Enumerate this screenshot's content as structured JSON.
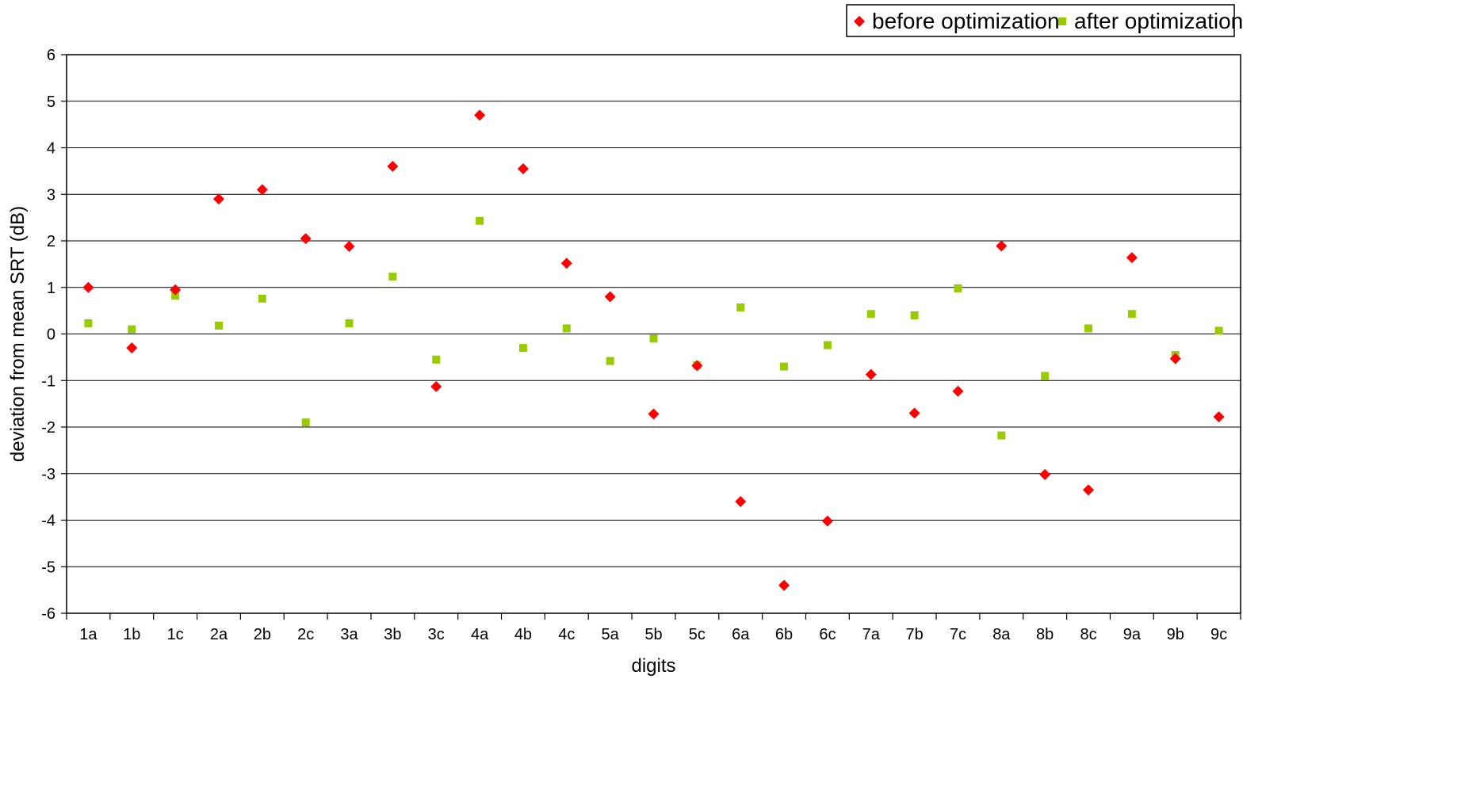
{
  "chart_data": {
    "type": "scatter",
    "categories": [
      "1a",
      "1b",
      "1c",
      "2a",
      "2b",
      "2c",
      "3a",
      "3b",
      "3c",
      "4a",
      "4b",
      "4c",
      "5a",
      "5b",
      "5c",
      "6a",
      "6b",
      "6c",
      "7a",
      "7b",
      "7c",
      "8a",
      "8b",
      "8c",
      "9a",
      "9b",
      "9c"
    ],
    "series": [
      {
        "name": "before optimization",
        "marker": "diamond",
        "color": "#ff0000",
        "values": [
          1.0,
          -0.3,
          0.95,
          2.9,
          3.1,
          2.05,
          1.88,
          3.6,
          -1.13,
          4.7,
          3.55,
          1.52,
          0.8,
          -1.72,
          -0.68,
          -3.6,
          -5.4,
          -4.02,
          -0.87,
          -1.7,
          -1.23,
          1.89,
          -3.02,
          -3.35,
          1.64,
          -0.53,
          -1.78
        ]
      },
      {
        "name": "after optimization",
        "marker": "square",
        "color": "#99cc00",
        "values": [
          0.23,
          0.1,
          0.82,
          0.18,
          0.76,
          -1.9,
          0.23,
          1.23,
          -0.55,
          2.43,
          -0.3,
          0.12,
          -0.58,
          -0.1,
          -0.67,
          0.57,
          -0.7,
          -0.24,
          0.43,
          0.4,
          0.98,
          -2.18,
          -0.9,
          0.12,
          0.43,
          -0.45,
          0.07
        ]
      }
    ],
    "xlabel": "digits",
    "ylabel": "deviation from mean SRT (dB)",
    "ylim": [
      -6,
      6
    ],
    "yticks": [
      "6",
      "5",
      "4",
      "3",
      "2",
      "1",
      "0",
      "-1",
      "-2",
      "-3",
      "-4",
      "-5",
      "-6"
    ],
    "grid": "horizontal",
    "legend_position": "top-right"
  }
}
